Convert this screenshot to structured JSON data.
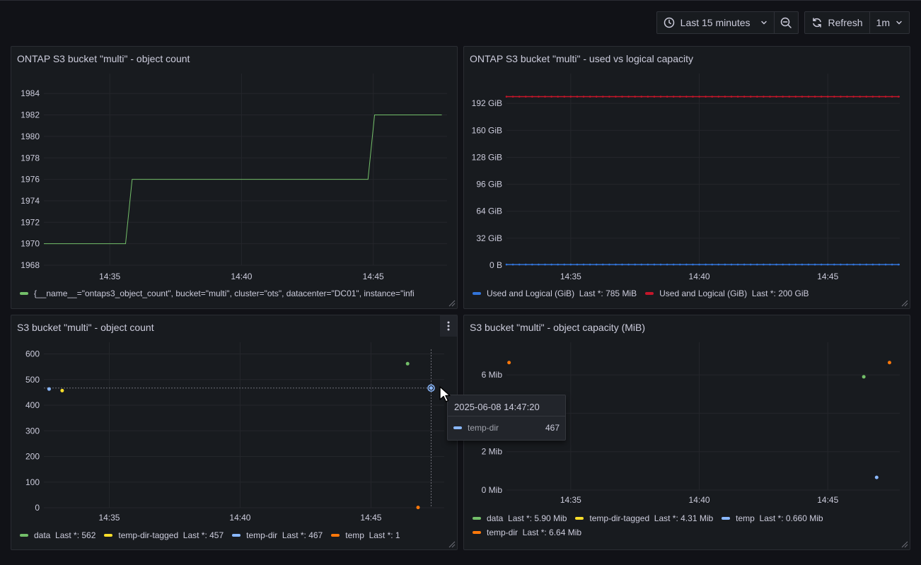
{
  "toolbar": {
    "time_range": "Last 15 minutes",
    "refresh_label": "Refresh",
    "refresh_interval": "1m",
    "icons": [
      "clock-icon",
      "chevron-down-icon",
      "zoom-out-icon",
      "refresh-icon"
    ]
  },
  "panels": [
    {
      "title": "ONTAP S3 bucket \"multi\" - object count"
    },
    {
      "title": "ONTAP S3 bucket \"multi\" - used vs logical capacity"
    },
    {
      "title": "S3 bucket \"multi\" - object count"
    },
    {
      "title": "S3 bucket \"multi\" - object capacity (MiB)"
    }
  ],
  "legends": {
    "p1": [
      {
        "label": "{__name__=\"ontaps3_object_count\", bucket=\"multi\", cluster=\"ots\", datacenter=\"DC01\", instance=\"infi",
        "color": "#73bf69"
      }
    ],
    "p2": [
      {
        "label": "Used and Logical (GiB)  Last *: 785 MiB",
        "color": "#3274d9"
      },
      {
        "label": "Used and Logical (GiB)  Last *: 200 GiB",
        "color": "#c4162a"
      }
    ],
    "p3": [
      {
        "label": "data  Last *: 562",
        "color": "#73bf69"
      },
      {
        "label": "temp-dir-tagged  Last *: 457",
        "color": "#fade2a"
      },
      {
        "label": "temp-dir  Last *: 467",
        "color": "#8ab8ff"
      },
      {
        "label": "temp  Last *: 1",
        "color": "#ff780a"
      }
    ],
    "p4": [
      {
        "label": "data  Last *: 5.90 Mib",
        "color": "#73bf69"
      },
      {
        "label": "temp-dir-tagged  Last *: 4.31 Mib",
        "color": "#fade2a"
      },
      {
        "label": "temp  Last *: 0.660 Mib",
        "color": "#8ab8ff"
      },
      {
        "label": "temp-dir  Last *: 6.64 Mib",
        "color": "#ff780a"
      }
    ]
  },
  "tooltip": {
    "time": "2025-06-08 14:47:20",
    "series": "temp-dir",
    "value": "467",
    "color": "#8ab8ff"
  },
  "chart_data": [
    {
      "type": "line",
      "title": "ONTAP S3 bucket \"multi\" - object count",
      "x_ticks": [
        "14:35",
        "14:40",
        "14:45"
      ],
      "y_ticks": [
        "1968",
        "1970",
        "1972",
        "1974",
        "1976",
        "1978",
        "1980",
        "1982",
        "1984"
      ],
      "ylim": [
        1968,
        1984
      ],
      "x_minutes": [
        32.5,
        35.6,
        35.85,
        44.8,
        45.05,
        47.6
      ],
      "series": [
        {
          "values": [
            1970,
            1970,
            1976,
            1976,
            1982,
            1982
          ],
          "color": "#73bf69"
        }
      ]
    },
    {
      "type": "line",
      "title": "ONTAP S3 bucket \"multi\" - used vs logical capacity",
      "x_ticks": [
        "14:35",
        "14:40",
        "14:45"
      ],
      "y_ticks": [
        "0 B",
        "32 GiB",
        "64 GiB",
        "96 GiB",
        "128 GiB",
        "160 GiB",
        "192 GiB"
      ],
      "ylim_gib": [
        0,
        224
      ],
      "series": [
        {
          "name": "Used and Logical (GiB)",
          "value_gib": 0.77,
          "color": "#3274d9"
        },
        {
          "name": "Used and Logical (GiB)",
          "value_gib": 200,
          "color": "#c4162a"
        }
      ]
    },
    {
      "type": "scatter",
      "title": "S3 bucket \"multi\" - object count",
      "x_ticks": [
        "14:35",
        "14:40",
        "14:45"
      ],
      "y_ticks": [
        "0",
        "100",
        "200",
        "300",
        "400",
        "500",
        "600"
      ],
      "ylim": [
        0,
        650
      ],
      "series": [
        {
          "name": "data",
          "color": "#73bf69",
          "points": [
            [
              46.4,
              562
            ]
          ]
        },
        {
          "name": "temp-dir-tagged",
          "color": "#fade2a",
          "points": [
            [
              33.2,
              457
            ]
          ]
        },
        {
          "name": "temp-dir",
          "color": "#8ab8ff",
          "points": [
            [
              32.7,
              463
            ],
            [
              47.3,
              467
            ]
          ]
        },
        {
          "name": "temp",
          "color": "#ff780a",
          "points": [
            [
              46.8,
              1
            ]
          ]
        }
      ]
    },
    {
      "type": "scatter",
      "title": "S3 bucket \"multi\" - object capacity (MiB)",
      "x_ticks": [
        "14:35",
        "14:40",
        "14:45"
      ],
      "y_ticks": [
        "0 Mib",
        "2 Mib",
        "4 Mib",
        "6 Mib"
      ],
      "ylim": [
        0,
        7.2
      ],
      "series": [
        {
          "name": "data",
          "color": "#73bf69",
          "points": [
            [
              46.4,
              5.9
            ]
          ]
        },
        {
          "name": "temp",
          "color": "#8ab8ff",
          "points": [
            [
              46.9,
              0.66
            ]
          ]
        },
        {
          "name": "temp-dir",
          "color": "#ff780a",
          "points": [
            [
              32.6,
              6.64
            ],
            [
              47.4,
              6.64
            ]
          ]
        }
      ]
    }
  ]
}
